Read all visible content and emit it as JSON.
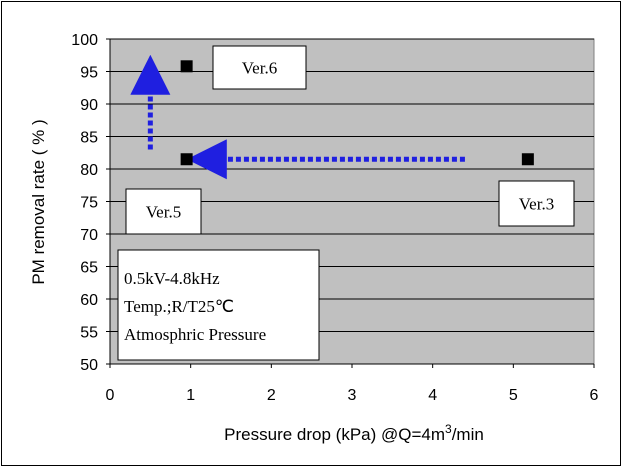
{
  "chart_data": {
    "type": "scatter",
    "title": "",
    "xlabel": "Pressure drop (kPa) @Q=4m",
    "xlabel_sup": "3",
    "xlabel_suffix": "/min",
    "ylabel": "PM removal rate ( % )",
    "xlim": [
      0,
      6
    ],
    "ylim": [
      50,
      100
    ],
    "x_ticks": [
      "0",
      "1",
      "2",
      "3",
      "4",
      "5",
      "6"
    ],
    "y_ticks": [
      "50",
      "55",
      "60",
      "65",
      "70",
      "75",
      "80",
      "85",
      "90",
      "95",
      "100"
    ],
    "grid": true,
    "background_color": "#c0c0c0",
    "marker_color": "#000000",
    "arrow_color": "#1f1fe0",
    "points": [
      {
        "x": 0.95,
        "y": 95.8
      },
      {
        "x": 0.95,
        "y": 81.5
      },
      {
        "x": 5.18,
        "y": 81.5
      }
    ],
    "annotations": [
      {
        "text": "Ver.6"
      },
      {
        "text": "Ver.5"
      },
      {
        "text": "Ver.3"
      }
    ],
    "arrows": [
      {
        "from": [
          4.4,
          81.5
        ],
        "to": [
          1.2,
          81.5
        ]
      },
      {
        "from": [
          0.5,
          83.0
        ],
        "to": [
          0.5,
          94.5
        ]
      }
    ],
    "info_box": [
      "0.5kV-4.8kHz",
      "Temp.;R/T25℃",
      "Atmosphric Pressure"
    ]
  }
}
